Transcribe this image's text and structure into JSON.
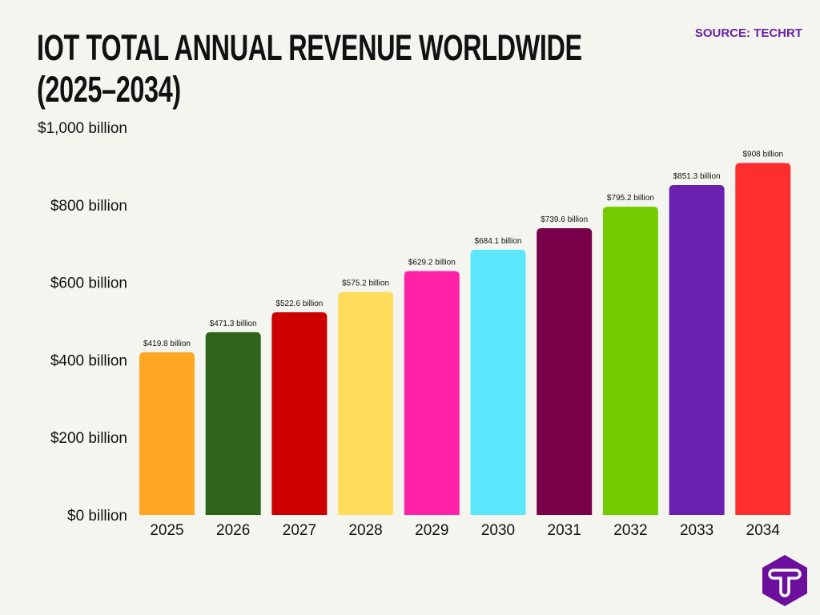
{
  "chart_data": {
    "type": "bar",
    "title": "IOT TOTAL ANNUAL REVENUE WORLDWIDE (2025–2034)",
    "title_lines": [
      "IOT TOTAL ANNUAL REVENUE WORLDWIDE",
      "(2025–2034)"
    ],
    "source": "SOURCE: TECHRT",
    "categories": [
      "2025",
      "2026",
      "2027",
      "2028",
      "2029",
      "2030",
      "2031",
      "2032",
      "2033",
      "2034"
    ],
    "values": [
      419.8,
      471.3,
      522.6,
      575.2,
      629.2,
      684.1,
      739.6,
      795.2,
      851.3,
      908
    ],
    "data_labels": [
      "$419.8 billion",
      "$471.3 billion",
      "$522.6 billion",
      "$575.2 billion",
      "$629.2 billion",
      "$684.1 billion",
      "$739.6 billion",
      "$795.2 billion",
      "$851.3 billion",
      "$908 billion"
    ],
    "colors": [
      "#FFA722",
      "#2E6419",
      "#CC0000",
      "#FFDD5C",
      "#FF22A6",
      "#5CE8FC",
      "#780049",
      "#74CC00",
      "#6B21B0",
      "#FF2E2E"
    ],
    "yticks": [
      0,
      200,
      400,
      600,
      800,
      1000
    ],
    "ytick_labels": [
      "$0 billion",
      "$200 billion",
      "$400 billion",
      "$600 billion",
      "$800 billion",
      "$1,000 billion"
    ],
    "ylim": [
      0,
      1000
    ],
    "xlabel": "",
    "ylabel": "",
    "grid": false,
    "legend": "none"
  },
  "logo": {
    "text": "T",
    "color": "#6B21A8",
    "name": "techrt-logo"
  }
}
